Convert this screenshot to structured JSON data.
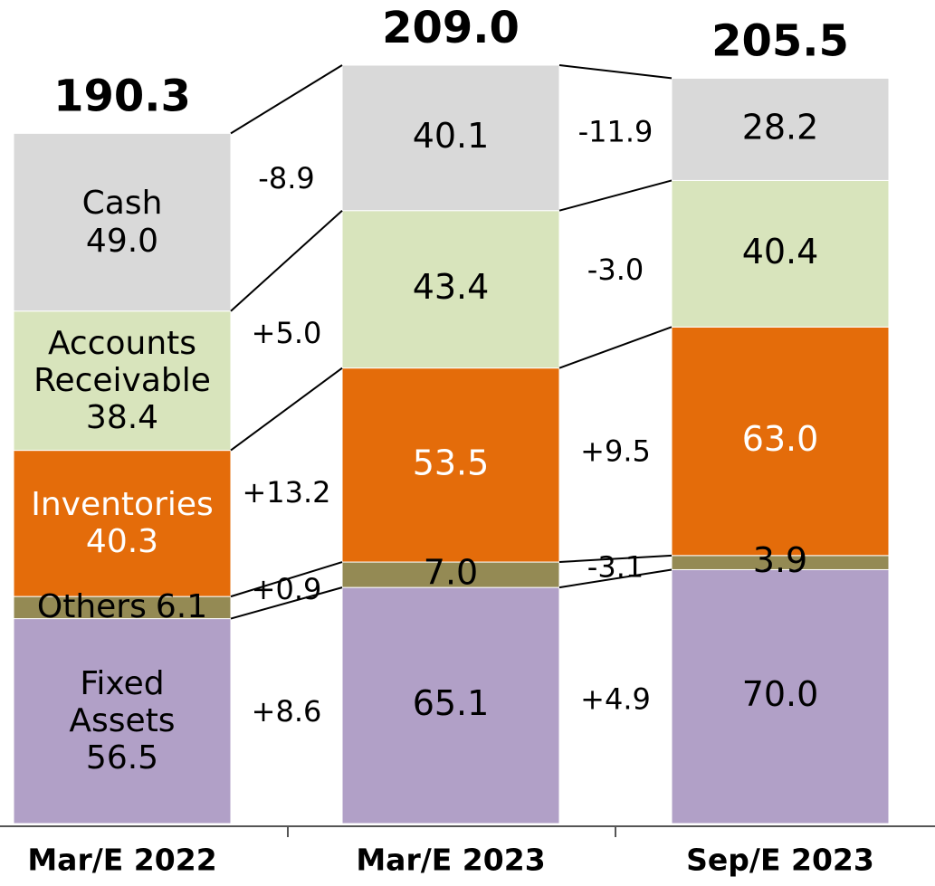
{
  "chart_data": {
    "type": "stacked_bar",
    "categories": [
      "Mar/E 2022",
      "Mar/E 2023",
      "Sep/E 2023"
    ],
    "series": [
      {
        "name": "Fixed Assets",
        "color": "#b1a0c7",
        "values": [
          56.5,
          65.1,
          70.0
        ],
        "value_labels": [
          "56.5",
          "65.1",
          "70.0"
        ],
        "changes": [
          8.6,
          4.9
        ],
        "change_labels": [
          "+8.6",
          "+4.9"
        ]
      },
      {
        "name": "Others",
        "color": "#948a54",
        "values": [
          6.1,
          7.0,
          3.9
        ],
        "value_labels": [
          "6.1",
          "7.0",
          "3.9"
        ],
        "changes": [
          0.9,
          -3.1
        ],
        "change_labels": [
          "+0.9",
          "-3.1"
        ]
      },
      {
        "name": "Inventories",
        "color": "#e46c0a",
        "values": [
          40.3,
          53.5,
          63.0
        ],
        "value_labels": [
          "40.3",
          "53.5",
          "63.0"
        ],
        "changes": [
          13.2,
          9.5
        ],
        "change_labels": [
          "+13.2",
          "+9.5"
        ]
      },
      {
        "name": "Accounts Receivable",
        "color": "#d8e4bc",
        "values": [
          38.4,
          43.4,
          40.4
        ],
        "value_labels": [
          "38.4",
          "43.4",
          "40.4"
        ],
        "changes": [
          5.0,
          -3.0
        ],
        "change_labels": [
          "+5.0",
          "-3.0"
        ]
      },
      {
        "name": "Cash",
        "color": "#d9d9d9",
        "values": [
          49.0,
          40.1,
          28.2
        ],
        "value_labels": [
          "49.0",
          "40.1",
          "28.2"
        ],
        "changes": [
          -8.9,
          -11.9
        ],
        "change_labels": [
          "-8.9",
          "-11.9"
        ]
      }
    ],
    "totals": [
      190.3,
      209.0,
      205.5
    ],
    "total_labels": [
      "190.3",
      "209.0",
      "205.5"
    ]
  }
}
